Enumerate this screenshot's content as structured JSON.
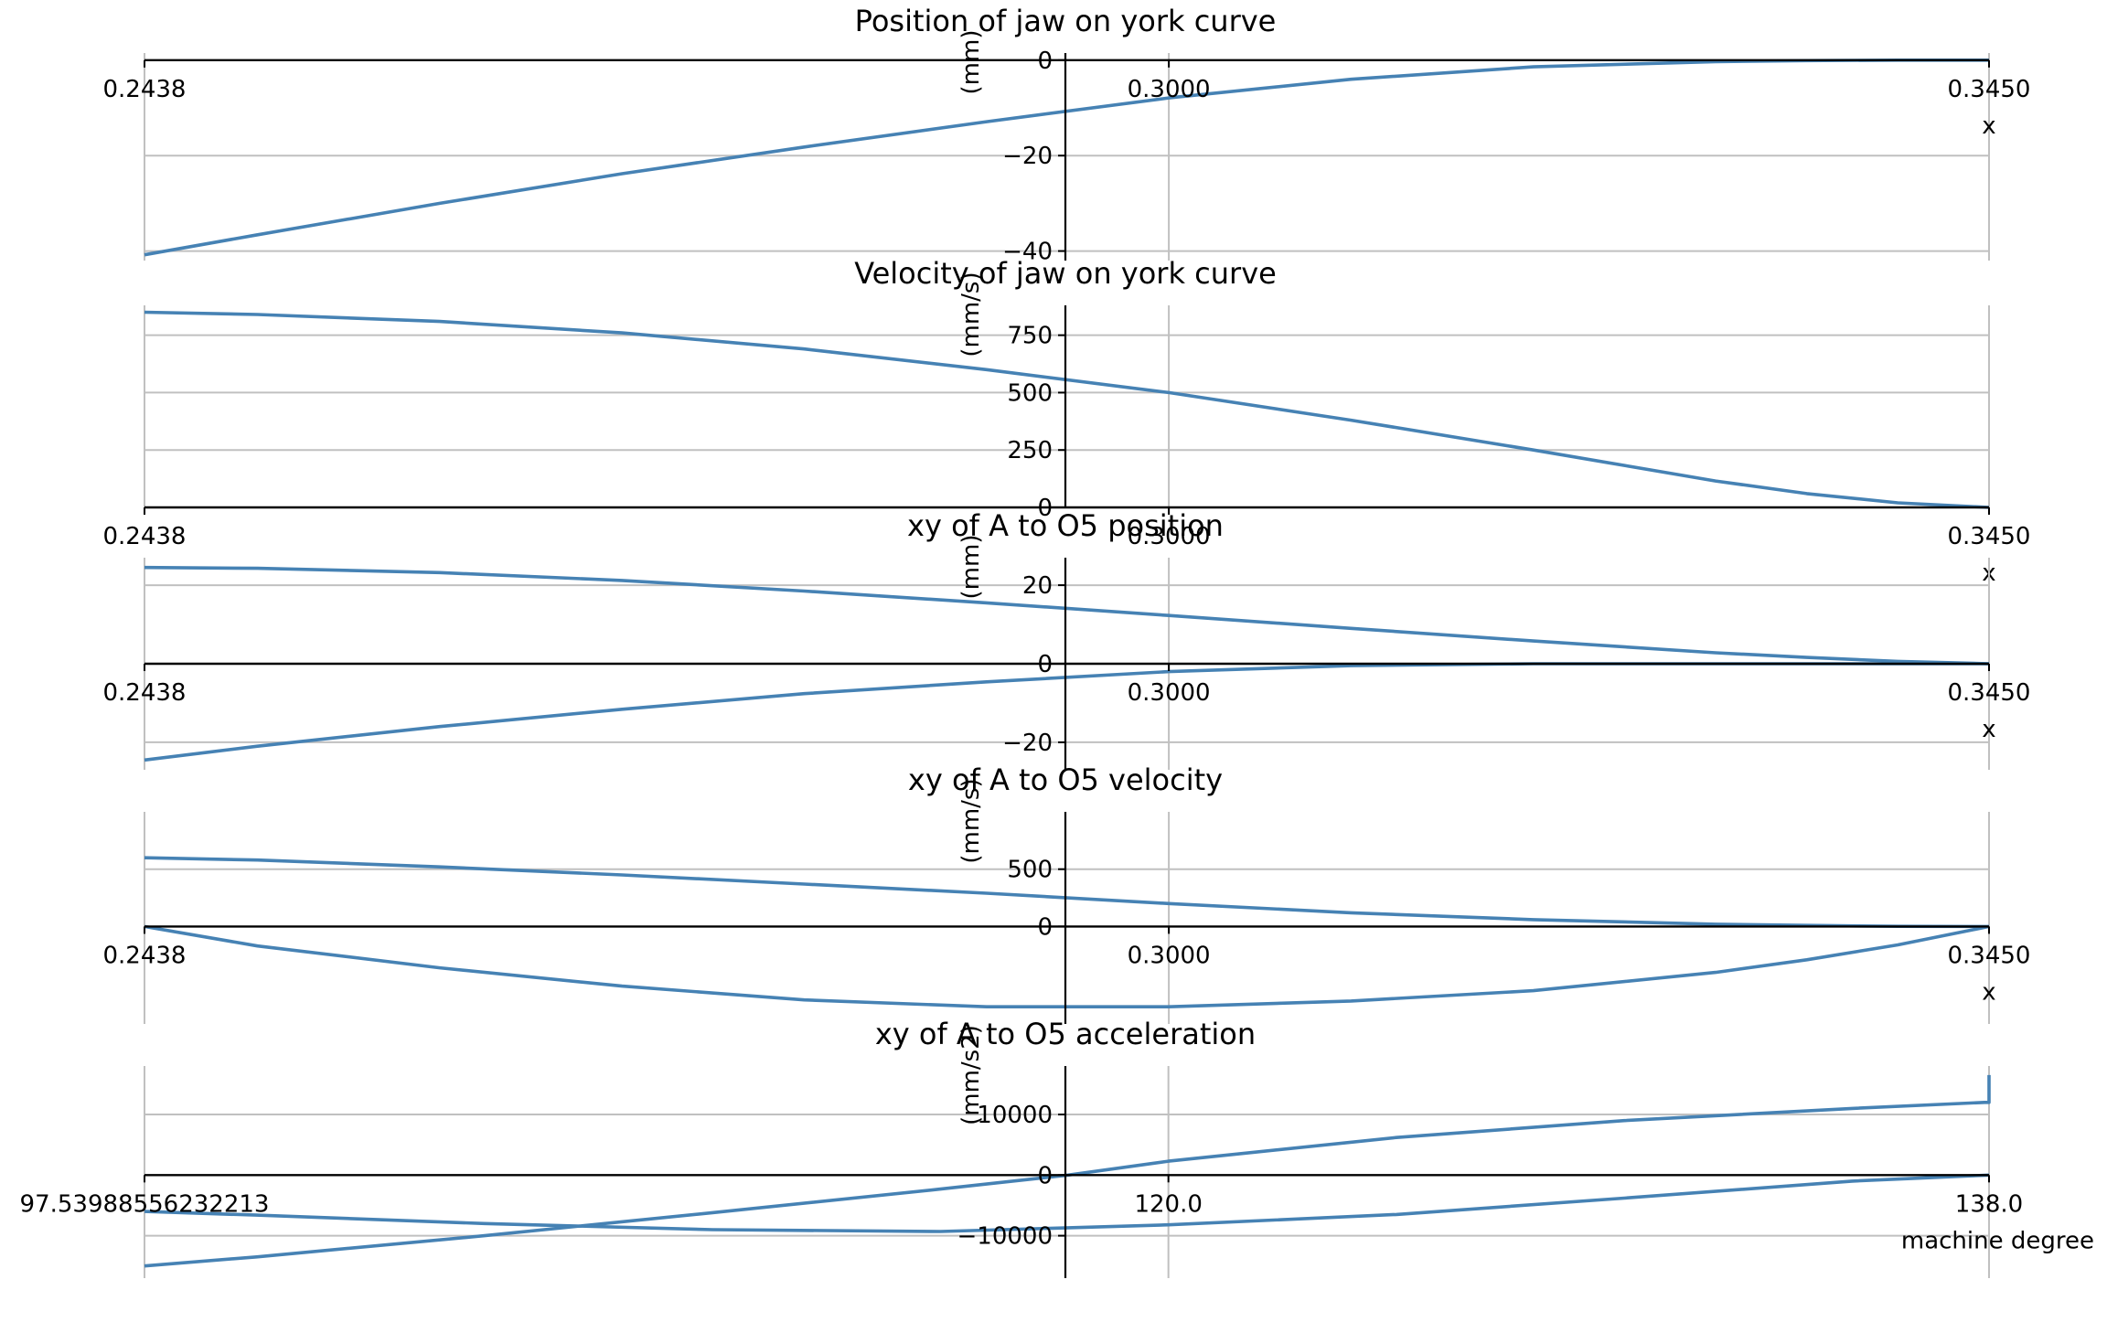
{
  "line_color": "#4682b4",
  "grid_color": "#c0c0c0",
  "axis_color": "#000000",
  "chart_data": [
    {
      "type": "line",
      "title": "Position of jaw on york curve",
      "ylabel": "(mm)",
      "xlabel": "x",
      "xlim": [
        0.2438,
        0.345
      ],
      "ylim": [
        -42,
        1.5
      ],
      "x_gridlines": [
        0.2438,
        0.3,
        0.345
      ],
      "xtick_labels": [
        "0.2438",
        "0.3000",
        "0.3450"
      ],
      "yticks": [
        0,
        -20,
        -40
      ],
      "ytick_labels": [
        "0",
        "−20",
        "−40"
      ],
      "y_gridlines": [
        -20,
        -40
      ],
      "series": [
        {
          "x": [
            0.2438,
            0.25,
            0.26,
            0.27,
            0.28,
            0.29,
            0.3,
            0.31,
            0.32,
            0.33,
            0.335,
            0.34,
            0.345
          ],
          "y": [
            -40.8,
            -36.6,
            -30.0,
            -23.8,
            -18.2,
            -12.9,
            -7.9,
            -4.0,
            -1.4,
            -0.3,
            -0.1,
            0.0,
            0.0
          ]
        }
      ]
    },
    {
      "type": "line",
      "title": "Velocity of jaw on york curve",
      "ylabel": "(mm/s)",
      "xlabel": "x",
      "xlim": [
        0.2438,
        0.345
      ],
      "ylim": [
        0,
        880
      ],
      "x_gridlines": [
        0.2438,
        0.3,
        0.345
      ],
      "xtick_labels": [
        "0.2438",
        "0.3000",
        "0.3450"
      ],
      "yticks": [
        0,
        250,
        500,
        750
      ],
      "ytick_labels": [
        "0",
        "250",
        "500",
        "750"
      ],
      "y_gridlines": [
        250,
        500,
        750
      ],
      "series": [
        {
          "x": [
            0.2438,
            0.25,
            0.26,
            0.27,
            0.28,
            0.29,
            0.3,
            0.31,
            0.32,
            0.33,
            0.335,
            0.34,
            0.345
          ],
          "y": [
            850,
            840,
            810,
            760,
            690,
            600,
            500,
            380,
            250,
            115,
            60,
            20,
            0
          ]
        }
      ]
    },
    {
      "type": "line",
      "title": "xy of A to O5 position",
      "ylabel": "(mm)",
      "xlabel": "x",
      "xlim": [
        0.2438,
        0.345
      ],
      "ylim": [
        -27,
        27
      ],
      "x_gridlines": [
        0.2438,
        0.3,
        0.345
      ],
      "xtick_labels": [
        "0.2438",
        "0.3000",
        "0.3450"
      ],
      "yticks": [
        0,
        20,
        -20
      ],
      "ytick_labels": [
        "0",
        "20",
        "−20"
      ],
      "y_gridlines": [
        20,
        -20
      ],
      "series": [
        {
          "x": [
            0.2438,
            0.25,
            0.26,
            0.27,
            0.28,
            0.29,
            0.3,
            0.31,
            0.32,
            0.33,
            0.335,
            0.34,
            0.345
          ],
          "y": [
            24.5,
            24.3,
            23.2,
            21.2,
            18.5,
            15.5,
            12.3,
            9.0,
            5.8,
            2.8,
            1.6,
            0.6,
            0.0
          ]
        },
        {
          "x": [
            0.2438,
            0.25,
            0.26,
            0.27,
            0.28,
            0.29,
            0.3,
            0.31,
            0.32,
            0.33,
            0.335,
            0.34,
            0.345
          ],
          "y": [
            -24.5,
            -21.0,
            -16.0,
            -11.6,
            -7.6,
            -4.6,
            -2.0,
            -0.5,
            0.0,
            0.0,
            0.0,
            0.0,
            0.0
          ]
        }
      ]
    },
    {
      "type": "line",
      "title": "xy of A to O5 velocity",
      "ylabel": "(mm/s)",
      "xlabel": "x",
      "xlim": [
        0.2438,
        0.345
      ],
      "ylim": [
        -850,
        1000
      ],
      "x_gridlines": [
        0.2438,
        0.3,
        0.345
      ],
      "xtick_labels": [
        "0.2438",
        "0.3000",
        "0.3450"
      ],
      "yticks": [
        0,
        500
      ],
      "ytick_labels": [
        "0",
        "500"
      ],
      "y_gridlines": [
        500
      ],
      "series": [
        {
          "x": [
            0.2438,
            0.25,
            0.26,
            0.27,
            0.28,
            0.29,
            0.3,
            0.31,
            0.32,
            0.33,
            0.335,
            0.34,
            0.345
          ],
          "y": [
            600,
            580,
            520,
            450,
            370,
            290,
            200,
            120,
            60,
            20,
            10,
            2,
            0
          ]
        },
        {
          "x": [
            0.2438,
            0.25,
            0.26,
            0.27,
            0.28,
            0.29,
            0.3,
            0.31,
            0.32,
            0.33,
            0.335,
            0.34,
            0.345
          ],
          "y": [
            0,
            -170,
            -360,
            -520,
            -640,
            -700,
            -700,
            -650,
            -560,
            -400,
            -290,
            -160,
            0
          ]
        }
      ]
    },
    {
      "type": "line",
      "title": "xy of A to O5 acceleration",
      "ylabel": "(mm/s2)",
      "xlabel": "machine degree",
      "xlim": [
        97.53988556232213,
        138.0
      ],
      "ylim": [
        -17000,
        18000
      ],
      "x_gridlines": [
        97.53988556232213,
        120.0,
        138.0
      ],
      "xtick_labels": [
        "97.53988556232213",
        "120.0",
        "138.0"
      ],
      "yticks": [
        10000,
        0,
        -10000
      ],
      "ytick_labels": [
        "10000",
        "0",
        "−10000"
      ],
      "y_gridlines": [
        10000,
        -10000
      ],
      "series": [
        {
          "x": [
            97.54,
            100,
            105,
            110,
            115,
            117.8,
            120,
            125,
            130,
            135,
            137.9,
            138.0,
            138.0
          ],
          "y": [
            -15000,
            -13500,
            -10000,
            -6200,
            -2300,
            0,
            2300,
            6200,
            9000,
            11000,
            12000,
            12000,
            16500
          ]
        },
        {
          "x": [
            97.54,
            100,
            105,
            110,
            115,
            120,
            125,
            130,
            135,
            138.0
          ],
          "y": [
            -6000,
            -6600,
            -8000,
            -9000,
            -9300,
            -8200,
            -6500,
            -3800,
            -1000,
            0
          ]
        }
      ]
    }
  ]
}
